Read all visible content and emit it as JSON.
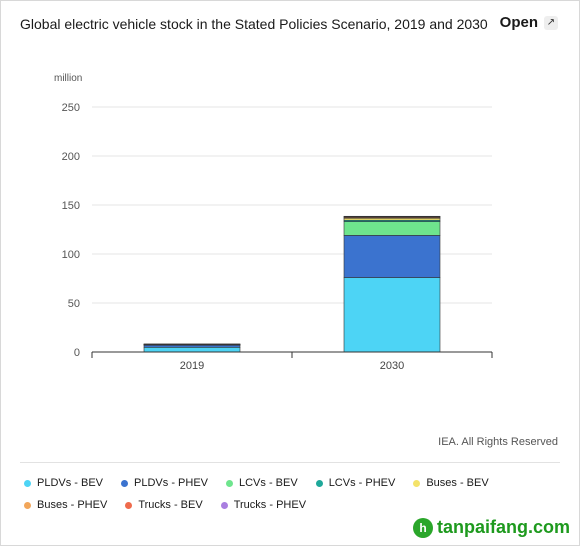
{
  "header": {
    "title": "Global electric vehicle stock in the Stated Policies Scenario, 2019 and 2030",
    "open_label": "Open",
    "open_icon": "external-link-icon"
  },
  "chart_data": {
    "type": "bar",
    "stacked": true,
    "categories": [
      "2019",
      "2030"
    ],
    "ylabel": "million",
    "ylim": [
      0,
      250
    ],
    "yticks": [
      0,
      50,
      100,
      150,
      200,
      250
    ],
    "grid": true,
    "legend_position": "bottom",
    "series": [
      {
        "name": "PLDVs - BEV",
        "color": "#4dd4f5",
        "values": [
          4.8,
          76
        ]
      },
      {
        "name": "PLDVs - PHEV",
        "color": "#3b73cf",
        "values": [
          2.3,
          43
        ]
      },
      {
        "name": "LCVs - BEV",
        "color": "#6ee58d",
        "values": [
          0.4,
          14
        ]
      },
      {
        "name": "LCVs - PHEV",
        "color": "#1ea89a",
        "values": [
          0.05,
          1.5
        ]
      },
      {
        "name": "Buses - BEV",
        "color": "#f4e36a",
        "values": [
          0.5,
          2
        ]
      },
      {
        "name": "Buses - PHEV",
        "color": "#f2a65a",
        "values": [
          0.05,
          0.7
        ]
      },
      {
        "name": "Trucks - BEV",
        "color": "#ef6b4c",
        "values": [
          0.01,
          1
        ]
      },
      {
        "name": "Trucks - PHEV",
        "color": "#a97fe0",
        "values": [
          0.0,
          0.3
        ]
      }
    ]
  },
  "credit": "IEA. All Rights Reserved",
  "watermark": {
    "logo_letter": "h",
    "text": "tanpaifang.com"
  }
}
